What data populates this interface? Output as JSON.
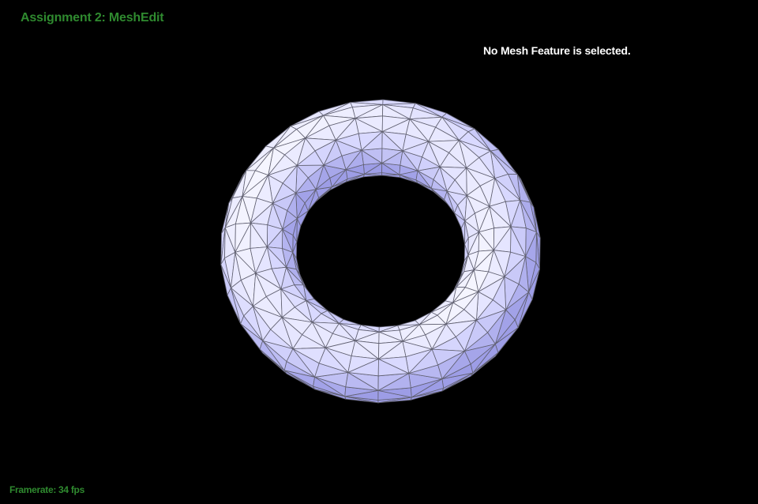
{
  "window": {
    "title": "Assignment 2: MeshEdit",
    "status": "No Mesh Feature is selected.",
    "framerate": "Framerate: 34 fps"
  },
  "viewport": {
    "background_color": "#000000",
    "title_color": "#2f8a2f",
    "status_color": "#ffffff"
  },
  "mesh": {
    "shape": "torus",
    "rendering": "triangle wireframe over shaded surface",
    "face_color_light": "#f0f0ff",
    "face_color_dark": "#8080e0",
    "edge_color": "#606070"
  }
}
